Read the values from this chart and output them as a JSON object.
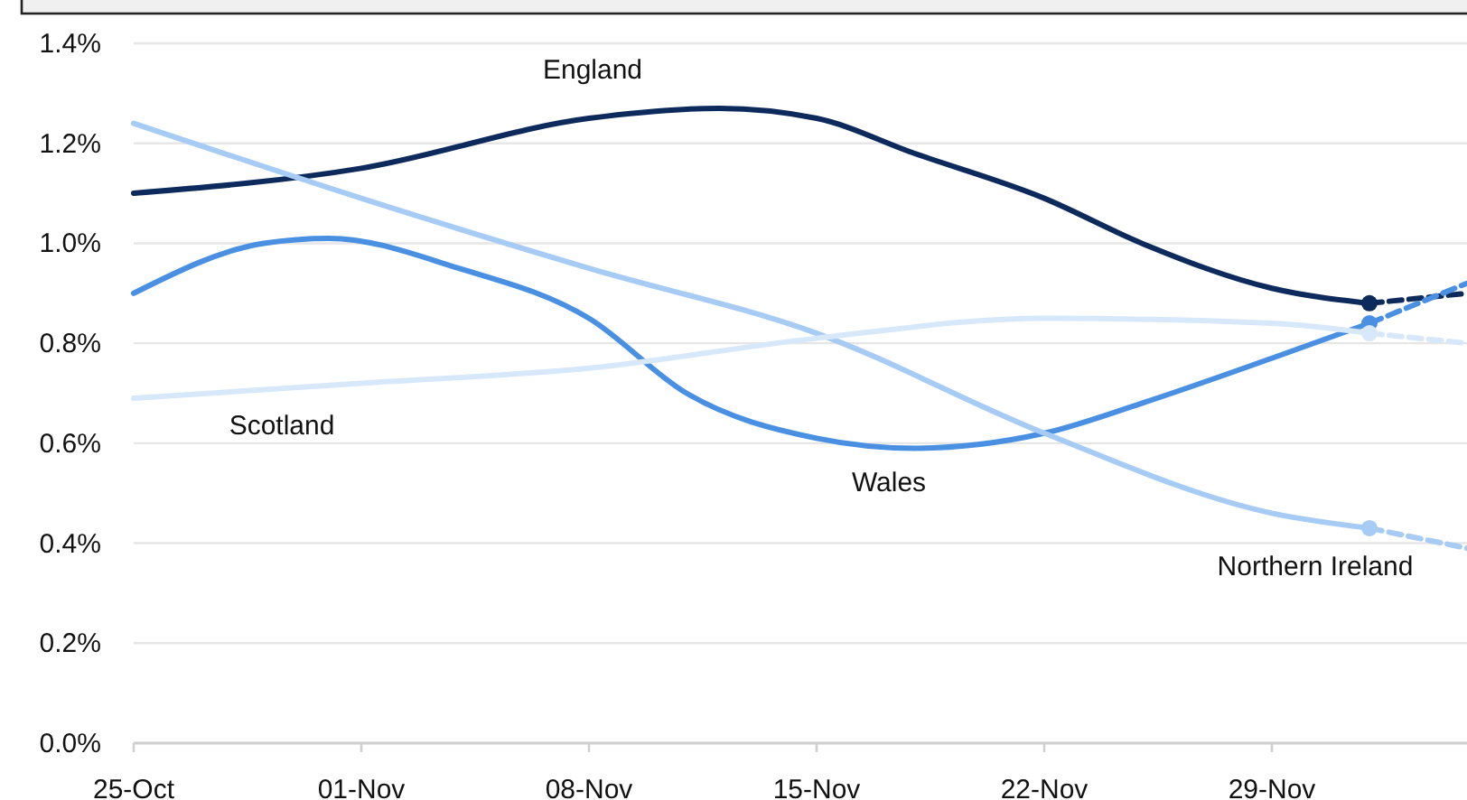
{
  "chart_data": {
    "type": "line",
    "x": [
      "--10-25",
      "--10-29",
      "--10-31",
      "--11-01",
      "--11-04",
      "--11-08",
      "--11-11",
      "--11-12",
      "--11-15",
      "--11-18",
      "--11-22",
      "--11-25",
      "--11-29",
      "--12-02"
    ],
    "series": [
      {
        "name": "England",
        "color": "#0d2a5c",
        "values": [
          1.1,
          null,
          null,
          1.15,
          null,
          1.25,
          null,
          1.27,
          1.25,
          1.18,
          1.09,
          1.0,
          0.91,
          0.88
        ]
      },
      {
        "name": "Wales",
        "color": "#4a90e2",
        "values": [
          0.9,
          1.0,
          1.01,
          null,
          0.95,
          0.85,
          0.7,
          null,
          0.61,
          0.59,
          0.62,
          0.68,
          0.77,
          0.84
        ]
      },
      {
        "name": "Northern Ireland",
        "color": "#a6cbf4",
        "values": [
          1.24,
          null,
          null,
          1.09,
          null,
          0.95,
          null,
          null,
          0.82,
          null,
          0.62,
          null,
          0.46,
          0.43
        ]
      },
      {
        "name": "Scotland",
        "color": "#d8e8fb",
        "values": [
          0.69,
          null,
          null,
          0.72,
          null,
          0.75,
          null,
          null,
          0.81,
          null,
          0.85,
          null,
          0.84,
          0.82
        ]
      },
      {
        "type": "line",
        "line_style": "dashed",
        "color": "#0d2a5c",
        "x": [
          "--12-02",
          "--12-05"
        ],
        "values": [
          0.88,
          0.9
        ]
      },
      {
        "type": "line",
        "line_style": "dashed",
        "color": "#4a90e2",
        "x": [
          "--12-02",
          "--12-05"
        ],
        "values": [
          0.84,
          0.92
        ]
      },
      {
        "type": "line",
        "line_style": "dashed",
        "color": "#a6cbf4",
        "x": [
          "--12-02",
          "--12-05"
        ],
        "values": [
          0.43,
          0.39
        ]
      },
      {
        "type": "line",
        "line_style": "dashed",
        "color": "#d8e8fb",
        "x": [
          "--12-02",
          "--12-05"
        ],
        "values": [
          0.82,
          0.8
        ]
      },
      {
        "type": "scatter",
        "marker": "circle",
        "x": [
          "--12-02",
          "--12-02",
          "--12-02",
          "--12-02"
        ],
        "values": [
          0.88,
          0.84,
          0.43,
          0.82
        ],
        "colors": [
          "#0d2a5c",
          "#4a90e2",
          "#a6cbf4",
          "#d8e8fb"
        ]
      }
    ],
    "xlim": [
      "--10-25",
      "--12-05"
    ],
    "xticks": [
      {
        "value": "--10-25",
        "label": "25-Oct"
      },
      {
        "value": "--11-01",
        "label": "01-Nov"
      },
      {
        "value": "--11-08",
        "label": "08-Nov"
      },
      {
        "value": "--11-15",
        "label": "15-Nov"
      },
      {
        "value": "--11-22",
        "label": "22-Nov"
      },
      {
        "value": "--11-29",
        "label": "29-Nov"
      }
    ],
    "ylim": [
      0,
      1.4
    ],
    "yticks": [
      {
        "value": 0,
        "label": "0.0%"
      },
      {
        "value": 0.2,
        "label": "0.2%"
      },
      {
        "value": 0.4,
        "label": "0.4%"
      },
      {
        "value": 0.6,
        "label": "0.6%"
      },
      {
        "value": 0.8,
        "label": "0.8%"
      },
      {
        "value": 1.0,
        "label": "1.0%"
      },
      {
        "value": 1.2,
        "label": "1.2%"
      },
      {
        "value": 1.4,
        "label": "1.4%"
      }
    ],
    "grid": "y",
    "line_style": "solid"
  }
}
